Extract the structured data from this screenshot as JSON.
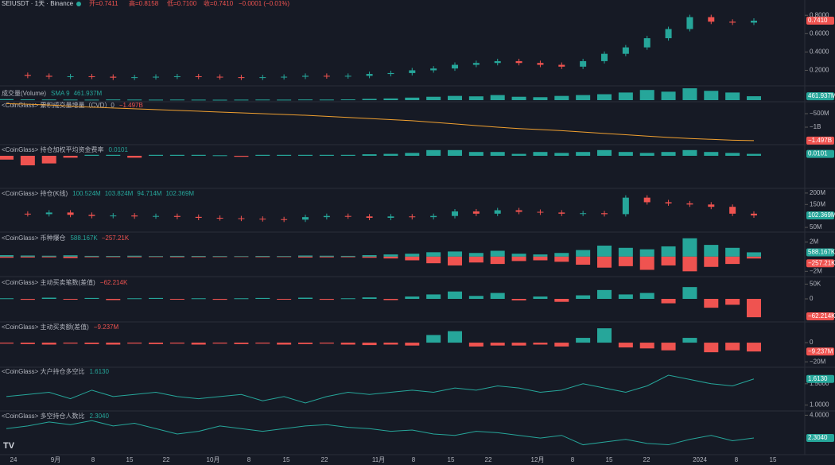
{
  "header": {
    "symbol": "SEIUSDT · 1天 · Binance",
    "open": "开=0.7411",
    "high": "高=0.8158",
    "low": "低=0.7100",
    "close": "收=0.7410",
    "change": "−0.0001 (−0.01%)"
  },
  "time_axis": {
    "labels": [
      "24",
      "9月",
      "8",
      "15",
      "22",
      "10月",
      "8",
      "15",
      "22",
      "11月",
      "8",
      "15",
      "22",
      "12月",
      "8",
      "15",
      "22",
      "2024",
      "8",
      "15"
    ]
  },
  "chart_data": [
    {
      "type": "candlestick",
      "title": "SEIUSDT",
      "badge": "0.7410",
      "ylim": [
        0.1,
        0.88
      ],
      "yticks": [
        {
          "value": 0.8,
          "label": "0.8000"
        },
        {
          "value": 0.6,
          "label": "0.6000"
        },
        {
          "value": 0.4,
          "label": "0.4000"
        },
        {
          "value": 0.2,
          "label": "0.2000"
        }
      ],
      "values": [
        0.15,
        0.14,
        0.13,
        0.135,
        0.13,
        0.12,
        0.125,
        0.13,
        0.135,
        0.13,
        0.125,
        0.12,
        0.125,
        0.13,
        0.14,
        0.135,
        0.14,
        0.16,
        0.17,
        0.2,
        0.22,
        0.26,
        0.28,
        0.3,
        0.28,
        0.26,
        0.24,
        0.3,
        0.38,
        0.45,
        0.55,
        0.65,
        0.78,
        0.73,
        0.72,
        0.741
      ]
    },
    {
      "type": "bar",
      "title": "成交量(Volume)",
      "legend": [
        "SMA 9",
        "461.937M"
      ],
      "badge": "461.937M",
      "ylim": [
        0,
        1500
      ],
      "yticks": [],
      "values": [
        120,
        90,
        80,
        70,
        60,
        80,
        70,
        60,
        70,
        60,
        50,
        60,
        70,
        60,
        80,
        70,
        90,
        150,
        200,
        300,
        400,
        500,
        450,
        600,
        400,
        350,
        500,
        600,
        700,
        900,
        1200,
        1000,
        1400,
        1100,
        900,
        461.937
      ]
    },
    {
      "type": "line",
      "title": "<CoinGlass> 累积成交量增量（CVD）0",
      "legend": [
        "−1.497B"
      ],
      "badge": "−1.497B",
      "color": "#f0a030",
      "ylim": [
        -1588,
        -118
      ],
      "yticks": [
        {
          "value": -500,
          "label": "−500M"
        },
        {
          "value": -1000,
          "label": "−1B"
        }
      ],
      "values": [
        -130,
        -150,
        -180,
        -220,
        -260,
        -290,
        -320,
        -350,
        -380,
        -410,
        -440,
        -470,
        -500,
        -530,
        -560,
        -600,
        -640,
        -680,
        -720,
        -760,
        -820,
        -880,
        -940,
        -1000,
        -1050,
        -1090,
        -1130,
        -1180,
        -1230,
        -1280,
        -1330,
        -1380,
        -1420,
        -1450,
        -1480,
        -1497
      ]
    },
    {
      "type": "bar",
      "title": "<CoinGlass> 持仓加权平均资金费率",
      "legend": [
        "0.0101"
      ],
      "badge": "0.0101",
      "ylim": [
        -0.15,
        0.05
      ],
      "yticks": [],
      "values": [
        -0.02,
        -0.05,
        -0.04,
        -0.01,
        0.005,
        0.005,
        -0.01,
        0.005,
        0.005,
        0.005,
        0.003,
        -0.005,
        0.005,
        0.005,
        0.005,
        0.005,
        0.005,
        0.008,
        0.01,
        0.015,
        0.03,
        0.03,
        0.02,
        0.02,
        0.01,
        0.02,
        0.015,
        0.02,
        0.03,
        0.02,
        0.015,
        0.02,
        0.03,
        0.02,
        0.015,
        0.0101
      ]
    },
    {
      "type": "candlestick",
      "title": "<CoinGlass> 持仓(K线)",
      "legend": [
        "100.524M",
        "103.824M",
        "94.714M",
        "102.369M"
      ],
      "badge": "102.369M",
      "ylim": [
        33,
        217
      ],
      "yticks": [
        {
          "value": 200,
          "label": "200M"
        },
        {
          "value": 150,
          "label": "150M"
        },
        {
          "value": 50,
          "label": "50M"
        }
      ],
      "values": [
        110,
        108,
        115,
        105,
        100,
        102,
        98,
        100,
        96,
        92,
        90,
        88,
        86,
        84,
        95,
        100,
        98,
        92,
        98,
        95,
        100,
        120,
        110,
        125,
        118,
        115,
        110,
        112,
        108,
        180,
        160,
        155,
        150,
        140,
        110,
        102.369
      ]
    },
    {
      "type": "dual-bar",
      "title": "<CoinGlass> 币种爆仓",
      "legend": [
        "588.167K",
        "−257.21K"
      ],
      "badge": "588.167K",
      "badge2": "−257.21K",
      "ylim": [
        -2615,
        3128
      ],
      "yticks": [
        {
          "value": 2000,
          "label": "2M"
        },
        {
          "value": -2000,
          "label": "−2M"
        }
      ],
      "long_values": [
        200,
        150,
        120,
        180,
        100,
        90,
        120,
        80,
        100,
        90,
        80,
        70,
        90,
        80,
        150,
        120,
        100,
        200,
        300,
        400,
        600,
        700,
        500,
        800,
        400,
        300,
        500,
        900,
        1500,
        1200,
        1000,
        1400,
        2500,
        1600,
        1200,
        588.167
      ],
      "short_values": [
        -150,
        -120,
        -100,
        -200,
        -80,
        -70,
        -90,
        -60,
        -80,
        -70,
        -60,
        -50,
        -70,
        -60,
        -120,
        -100,
        -80,
        -150,
        -250,
        -500,
        -900,
        -1200,
        -800,
        -1000,
        -600,
        -500,
        -700,
        -1100,
        -1500,
        -1300,
        -1800,
        -1200,
        -2000,
        -1400,
        -1000,
        -257.21
      ]
    },
    {
      "type": "bar",
      "title": "<CoinGlass> 主动买卖笔数(差值)",
      "legend": [
        "−62.214K"
      ],
      "badge": "−62.214K",
      "ylim": [
        -70,
        70
      ],
      "yticks": [
        {
          "value": 50,
          "label": "50K"
        },
        {
          "value": 0,
          "label": "0"
        }
      ],
      "values": [
        2,
        -3,
        4,
        -2,
        3,
        -4,
        2,
        3,
        -2,
        2,
        -3,
        2,
        3,
        -2,
        4,
        -3,
        2,
        5,
        -4,
        8,
        15,
        25,
        10,
        20,
        -5,
        8,
        -10,
        12,
        30,
        15,
        20,
        -15,
        40,
        -30,
        -20,
        -62.214
      ]
    },
    {
      "type": "bar",
      "title": "<CoinGlass> 主动买卖额(差值)",
      "legend": [
        "−9.237M"
      ],
      "badge": "−9.237M",
      "ylim": [
        -24,
        20
      ],
      "yticks": [
        {
          "value": 0,
          "label": "0"
        },
        {
          "value": -20,
          "label": "−20M"
        }
      ],
      "values": [
        -1,
        -1.5,
        -2,
        -1,
        -1.5,
        -2,
        -1,
        -1.5,
        -1,
        -2,
        -1,
        -1.5,
        -1,
        -2,
        -1.5,
        -1,
        -2,
        -2.5,
        -2,
        -3,
        8,
        12,
        -4,
        -3,
        -3,
        -2,
        -4,
        5,
        15,
        -5,
        -6,
        -8,
        5,
        -10,
        -8,
        -9.237
      ]
    },
    {
      "type": "line",
      "title": "<CoinGlass> 大户持仓多空比",
      "legend": [
        "1.6130"
      ],
      "badge": "1.6130",
      "color": "#26a69a",
      "ylim": [
        0.9,
        1.85
      ],
      "yticks": [
        {
          "value": 1.5,
          "label": "1.5000"
        },
        {
          "value": 1.0,
          "label": "1.0000"
        }
      ],
      "values": [
        1.2,
        1.25,
        1.3,
        1.15,
        1.35,
        1.2,
        1.25,
        1.3,
        1.2,
        1.15,
        1.2,
        1.25,
        1.1,
        1.2,
        1.05,
        1.2,
        1.3,
        1.25,
        1.3,
        1.35,
        1.3,
        1.4,
        1.35,
        1.45,
        1.4,
        1.3,
        1.35,
        1.5,
        1.4,
        1.3,
        1.45,
        1.7,
        1.6,
        1.5,
        1.45,
        1.613
      ]
    },
    {
      "type": "line",
      "title": "<CoinGlass> 多空持仓人数比",
      "legend": [
        "2.3040"
      ],
      "badge": "2.3040",
      "color": "#26a69a",
      "ylim": [
        1.3,
        4.2
      ],
      "yticks": [
        {
          "value": 4.0,
          "label": "4.0000"
        }
      ],
      "values": [
        3.0,
        3.2,
        3.5,
        3.3,
        3.6,
        3.2,
        3.4,
        3.0,
        2.6,
        2.8,
        3.2,
        3.0,
        2.8,
        3.0,
        3.2,
        3.3,
        3.1,
        3.0,
        2.8,
        2.9,
        2.6,
        2.5,
        2.8,
        2.7,
        2.5,
        2.3,
        2.5,
        1.8,
        2.0,
        2.2,
        1.9,
        1.8,
        2.2,
        2.5,
        2.1,
        2.304
      ]
    }
  ]
}
